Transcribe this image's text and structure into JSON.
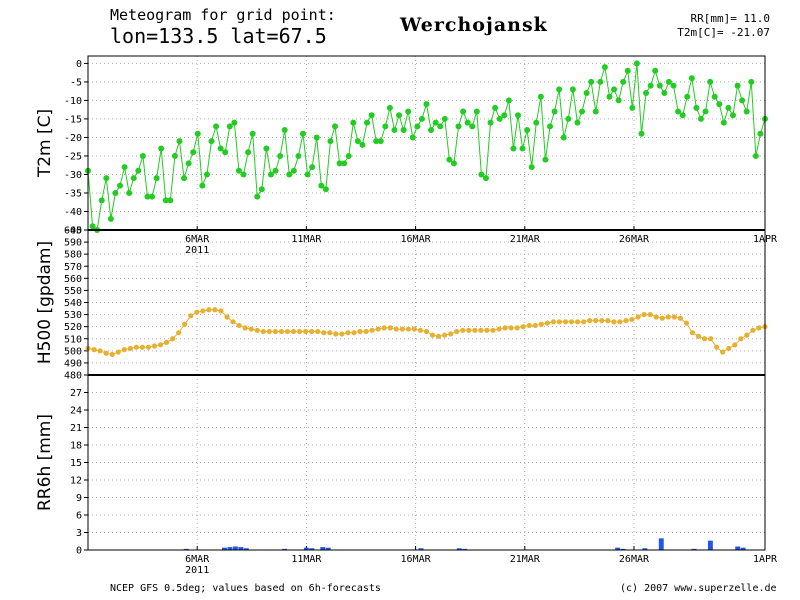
{
  "header": {
    "title_line1": "Meteogram for grid point:",
    "title_line2": "lon=133.5 lat=67.5",
    "station": "Werchojansk",
    "rr_readout": "RR[mm]= 11.0",
    "t2m_readout": "T2m[C]= -21.07"
  },
  "footer": {
    "left": "NCEP GFS 0.5deg; values based on 6h-forecasts",
    "right": "(c) 2007 www.superzelle.de"
  },
  "colors": {
    "t2m": "#22cc22",
    "h500": "#e8b030",
    "rr": "#2255ee",
    "grid": "#b0b0b0"
  },
  "chart_data": [
    {
      "type": "line",
      "title": "",
      "ylabel": "T2m [C]",
      "xlabel": "",
      "x_range": [
        "2011-03-01",
        "2011-04-01"
      ],
      "x_ticks": [
        {
          "label": "6MAR",
          "sub": "2011",
          "date": "2011-03-06"
        },
        {
          "label": "11MAR",
          "sub": "",
          "date": "2011-03-11"
        },
        {
          "label": "16MAR",
          "sub": "",
          "date": "2011-03-16"
        },
        {
          "label": "21MAR",
          "sub": "",
          "date": "2011-03-21"
        },
        {
          "label": "26MAR",
          "sub": "",
          "date": "2011-03-26"
        },
        {
          "label": "1APR",
          "sub": "",
          "date": "2011-04-01"
        }
      ],
      "ylim": [
        -45,
        2
      ],
      "yticks": [
        "0",
        "-5",
        "-10",
        "-15",
        "-20",
        "-25",
        "-30",
        "-35",
        "-40",
        "-45"
      ],
      "grid": true,
      "series": [
        {
          "values": [
            -29,
            -44,
            -45,
            -37,
            -31,
            -42,
            -35,
            -33,
            -28,
            -35,
            -31,
            -29,
            -25,
            -36,
            -36,
            -31,
            -23,
            -37,
            -37,
            -25,
            -21,
            -31,
            -27,
            -24,
            -19,
            -33,
            -30,
            -21,
            -17,
            -23,
            -24,
            -17,
            -16,
            -29,
            -30,
            -24,
            -19,
            -36,
            -34,
            -23,
            -30,
            -29,
            -25,
            -18,
            -30,
            -29,
            -25,
            -19,
            -30,
            -28,
            -20,
            -33,
            -34,
            -21,
            -17,
            -27,
            -27,
            -25,
            -16,
            -21,
            -22,
            -16,
            -14,
            -21,
            -21,
            -17,
            -12,
            -18,
            -14,
            -18,
            -13,
            -20,
            -17,
            -15,
            -11,
            -18,
            -16,
            -17,
            -15,
            -26,
            -27,
            -17,
            -13,
            -16,
            -17,
            -13,
            -30,
            -31,
            -16,
            -12,
            -15,
            -14,
            -10,
            -23,
            -14,
            -23,
            -18,
            -28,
            -16,
            -9,
            -26,
            -17,
            -13,
            -7,
            -20,
            -15,
            -7,
            -16,
            -13,
            -8,
            -5,
            -13,
            -5,
            -1,
            -9,
            -7,
            -10,
            -5,
            -2,
            -12,
            0,
            -19,
            -8,
            -6,
            -2,
            -6,
            -8,
            -5,
            -6,
            -13,
            -14,
            -9,
            -4,
            -12,
            -15,
            -13,
            -5,
            -9,
            -11,
            -16,
            -12,
            -14,
            -6,
            -10,
            -13,
            -5,
            -25,
            -19,
            -15
          ]
        }
      ]
    },
    {
      "type": "line",
      "title": "",
      "ylabel": "H500 [gpdam]",
      "xlabel": "",
      "ylim": [
        480,
        600
      ],
      "yticks": [
        "600",
        "590",
        "580",
        "570",
        "560",
        "550",
        "540",
        "530",
        "520",
        "510",
        "500",
        "490",
        "480"
      ],
      "grid": true,
      "series": [
        {
          "values": [
            502,
            501,
            500,
            498,
            497,
            499,
            501,
            502,
            503,
            503,
            503,
            504,
            505,
            507,
            510,
            515,
            522,
            529,
            532,
            533,
            534,
            534,
            533,
            528,
            524,
            521,
            519,
            518,
            517,
            516,
            516,
            516,
            516,
            516,
            516,
            516,
            516,
            516,
            516,
            515,
            515,
            514,
            514,
            515,
            515,
            516,
            516,
            517,
            518,
            519,
            519,
            518,
            518,
            518,
            518,
            517,
            516,
            513,
            512,
            513,
            514,
            516,
            517,
            517,
            517,
            517,
            517,
            517,
            518,
            519,
            519,
            519,
            520,
            521,
            521,
            522,
            523,
            524,
            524,
            524,
            524,
            524,
            524,
            525,
            525,
            525,
            525,
            524,
            524,
            525,
            526,
            528,
            530,
            530,
            528,
            527,
            528,
            528,
            527,
            523,
            515,
            512,
            510,
            510,
            503,
            499,
            502,
            505,
            510,
            513,
            517,
            519,
            520
          ]
        }
      ]
    },
    {
      "type": "bar",
      "title": "",
      "ylabel": "RR6h [mm]",
      "xlabel": "",
      "ylim": [
        0,
        30
      ],
      "yticks": [
        "27",
        "24",
        "21",
        "18",
        "15",
        "12",
        "9",
        "6",
        "3",
        "0"
      ],
      "grid": true,
      "bars": [
        {
          "x": "2011-03-05T12",
          "value": 0.2
        },
        {
          "x": "2011-03-07T06",
          "value": 0.4
        },
        {
          "x": "2011-03-07T12",
          "value": 0.5
        },
        {
          "x": "2011-03-07T18",
          "value": 0.6
        },
        {
          "x": "2011-03-08T00",
          "value": 0.5
        },
        {
          "x": "2011-03-08T06",
          "value": 0.3
        },
        {
          "x": "2011-03-10T00",
          "value": 0.2
        },
        {
          "x": "2011-03-11T00",
          "value": 0.4
        },
        {
          "x": "2011-03-11T06",
          "value": 0.3
        },
        {
          "x": "2011-03-11T18",
          "value": 0.5
        },
        {
          "x": "2011-03-12T00",
          "value": 0.4
        },
        {
          "x": "2011-03-16T06",
          "value": 0.3
        },
        {
          "x": "2011-03-18T00",
          "value": 0.3
        },
        {
          "x": "2011-03-18T06",
          "value": 0.2
        },
        {
          "x": "2011-03-25T06",
          "value": 0.4
        },
        {
          "x": "2011-03-25T12",
          "value": 0.2
        },
        {
          "x": "2011-03-26T12",
          "value": 0.3
        },
        {
          "x": "2011-03-27T06",
          "value": 2.0
        },
        {
          "x": "2011-03-28T18",
          "value": 0.2
        },
        {
          "x": "2011-03-29T12",
          "value": 1.6
        },
        {
          "x": "2011-03-30T18",
          "value": 0.6
        },
        {
          "x": "2011-03-31T00",
          "value": 0.4
        }
      ]
    }
  ]
}
